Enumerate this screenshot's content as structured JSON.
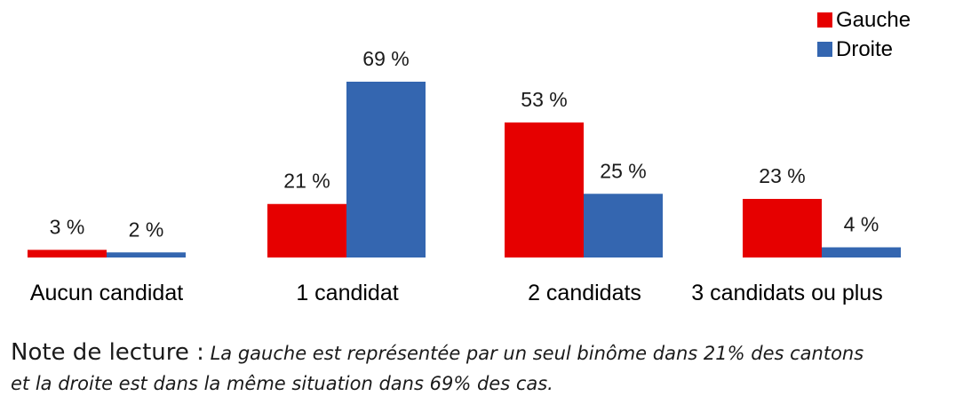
{
  "chart_data": {
    "type": "bar",
    "categories": [
      "Aucun candidat",
      "1 candidat",
      "2 candidats",
      "3 candidats ou plus"
    ],
    "series": [
      {
        "name": "Gauche",
        "values": [
          3,
          21,
          53,
          23
        ],
        "labels": [
          "3 %",
          "21 %",
          "53 %",
          "23 %"
        ]
      },
      {
        "name": "Droite",
        "values": [
          2,
          69,
          25,
          4
        ],
        "labels": [
          "2 %",
          "69 %",
          "25 %",
          "4 %"
        ]
      }
    ],
    "unit": "%",
    "ylim": [
      0,
      69
    ],
    "grid": false,
    "legend_position": "top-right",
    "colors": {
      "Gauche": "#e60000",
      "Droite": "#3466b0"
    }
  },
  "note": {
    "heading": "Note de lecture :",
    "text_line1": "La gauche est représentée par un seul binôme dans 21% des cantons",
    "text_line2": "et la droite est dans la même situation dans 69% des cas."
  }
}
